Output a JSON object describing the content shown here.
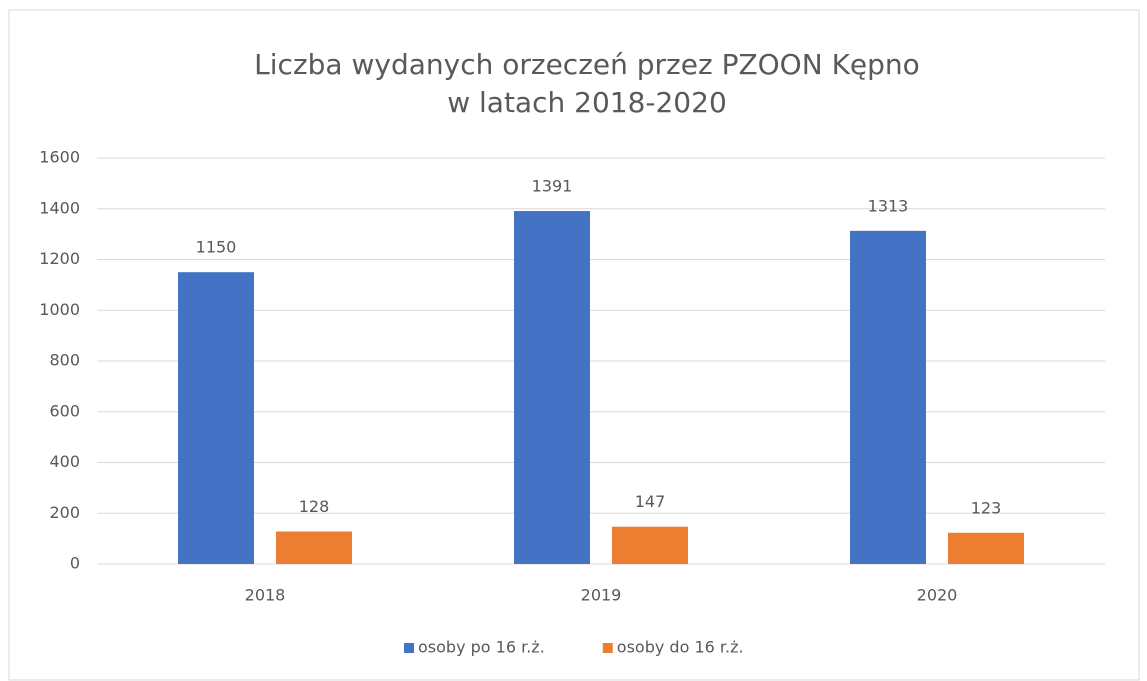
{
  "chart_data": {
    "type": "bar",
    "title": [
      "Liczba wydanych orzeczeń przez PZOON Kępno",
      "w latach 2018-2020"
    ],
    "categories": [
      "2018",
      "2019",
      "2020"
    ],
    "series": [
      {
        "name": "osoby po 16 r.ż.",
        "color": "#4472c4",
        "values": [
          1150,
          1391,
          1313
        ]
      },
      {
        "name": "osoby do 16 r.ż.",
        "color": "#ed7d31",
        "values": [
          128,
          147,
          123
        ]
      }
    ],
    "ylim": [
      0,
      1600
    ],
    "yticks": [
      0,
      200,
      400,
      600,
      800,
      1000,
      1200,
      1400,
      1600
    ],
    "grid": true,
    "legend": "bottom"
  }
}
